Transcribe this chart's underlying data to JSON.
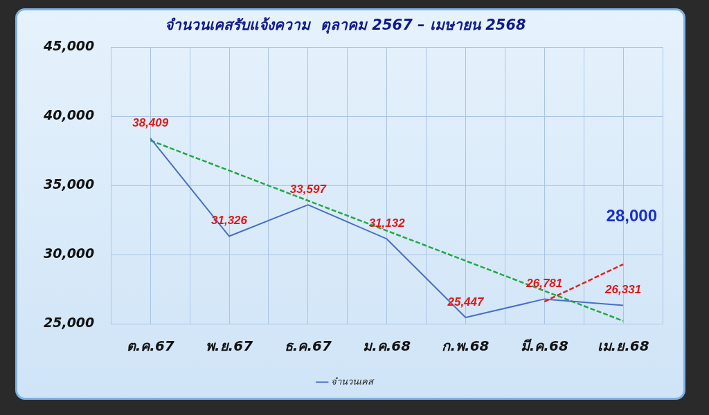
{
  "chart_data": {
    "type": "line",
    "title": "จำนวนเคสรับแจ้งความ  ตุลาคม 2567 – เมษายน 2568",
    "categories": [
      "ต.ค.67",
      "พ.ย.67",
      "ธ.ค.67",
      "ม.ค.68",
      "ก.พ.68",
      "มี.ค.68",
      "เม.ย.68"
    ],
    "series": [
      {
        "name": "จำนวนเคส",
        "color": "#4a6fc4",
        "values": [
          38409,
          31326,
          33597,
          31132,
          25447,
          26781,
          26331
        ],
        "value_labels": [
          "38,409",
          "31,326",
          "33,597",
          "31,132",
          "25,447",
          "26,781",
          "26,331"
        ]
      },
      {
        "type": "line",
        "color": "#22a845",
        "line_style": "dashed",
        "x": [
          "ต.ค.67",
          "เม.ย.68"
        ],
        "values": [
          38250,
          25200
        ]
      },
      {
        "type": "line",
        "color": "#e02020",
        "line_style": "dashed",
        "x": [
          "มี.ค.68",
          "เม.ย.68"
        ],
        "values": [
          26600,
          29300
        ]
      }
    ],
    "ylim": [
      25000,
      45000
    ],
    "yticks": [
      {
        "value": 25000,
        "label": "25,000"
      },
      {
        "value": 30000,
        "label": "30,000"
      },
      {
        "value": 35000,
        "label": "35,000"
      },
      {
        "value": 40000,
        "label": "40,000"
      },
      {
        "value": 45000,
        "label": "45,000"
      }
    ],
    "grid": true,
    "legend": "bottom",
    "marker": "none",
    "line_style": "solid",
    "annotations": [
      "28,000"
    ]
  }
}
